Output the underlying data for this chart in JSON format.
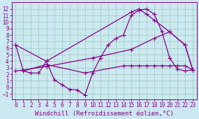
{
  "background_color": "#cce8f0",
  "grid_color": "#99ccbb",
  "line_color": "#880088",
  "marker": "+",
  "markersize": 4,
  "linewidth": 0.9,
  "xlabel": "Windchill (Refroidissement éolien,°C)",
  "xlabel_fontsize": 6.5,
  "tick_fontsize": 5.5,
  "xlim": [
    -0.5,
    23.5
  ],
  "ylim": [
    -1.8,
    13.0
  ],
  "yticks": [
    -1,
    0,
    1,
    2,
    3,
    4,
    5,
    6,
    7,
    8,
    9,
    10,
    11,
    12
  ],
  "xticks": [
    0,
    1,
    2,
    3,
    4,
    5,
    6,
    7,
    8,
    9,
    10,
    11,
    12,
    13,
    14,
    15,
    16,
    17,
    18,
    19,
    20,
    21,
    22,
    23
  ],
  "s1": [
    [
      0,
      6.5
    ],
    [
      1,
      2.5
    ],
    [
      2,
      2.2
    ],
    [
      3,
      2.2
    ],
    [
      4,
      4.0
    ],
    [
      5,
      1.2
    ],
    [
      6,
      0.4
    ],
    [
      7,
      -0.3
    ],
    [
      8,
      -0.4
    ],
    [
      9,
      -1.2
    ],
    [
      10,
      2.2
    ],
    [
      11,
      4.5
    ],
    [
      12,
      6.5
    ],
    [
      13,
      7.5
    ],
    [
      14,
      8.0
    ],
    [
      15,
      11.0
    ],
    [
      16,
      11.8
    ],
    [
      17,
      12.0
    ],
    [
      18,
      11.2
    ],
    [
      19,
      8.5
    ],
    [
      20,
      4.5
    ],
    [
      21,
      2.8
    ],
    [
      22,
      2.5
    ],
    [
      23,
      2.7
    ]
  ],
  "s2": [
    [
      0,
      6.5
    ],
    [
      4,
      4.0
    ],
    [
      15,
      11.5
    ],
    [
      16,
      12.0
    ],
    [
      17,
      11.2
    ],
    [
      18,
      10.3
    ],
    [
      20,
      8.5
    ],
    [
      22,
      6.5
    ],
    [
      23,
      2.7
    ]
  ],
  "s3": [
    [
      0,
      2.5
    ],
    [
      4,
      3.2
    ],
    [
      10,
      4.5
    ],
    [
      15,
      5.8
    ],
    [
      18,
      7.5
    ],
    [
      20,
      8.5
    ],
    [
      22,
      6.5
    ],
    [
      23,
      2.7
    ]
  ],
  "s4": [
    [
      1,
      2.5
    ],
    [
      4,
      3.5
    ],
    [
      9,
      2.2
    ],
    [
      14,
      3.3
    ],
    [
      15,
      3.3
    ],
    [
      16,
      3.3
    ],
    [
      17,
      3.3
    ],
    [
      18,
      3.3
    ],
    [
      19,
      3.3
    ],
    [
      20,
      3.3
    ],
    [
      21,
      3.3
    ],
    [
      22,
      3.3
    ],
    [
      23,
      2.7
    ]
  ]
}
